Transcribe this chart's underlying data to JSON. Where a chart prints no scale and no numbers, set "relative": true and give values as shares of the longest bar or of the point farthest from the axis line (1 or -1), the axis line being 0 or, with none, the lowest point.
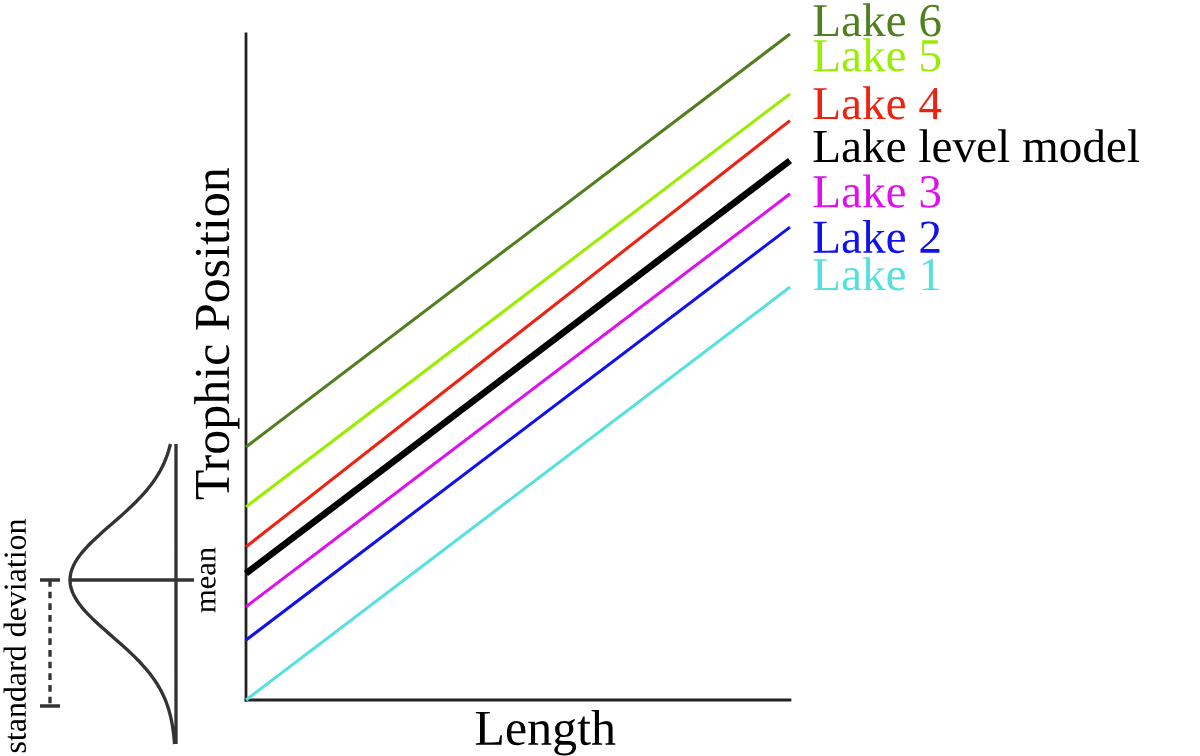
{
  "chart_data": {
    "type": "line",
    "relative": true,
    "xlabel": "Length",
    "ylabel": "Trophic Position",
    "categories": [
      null,
      null
    ],
    "series": [
      {
        "name": "Lake 6",
        "color": "#4f7f1f",
        "values": [
          0.38,
          1.0
        ]
      },
      {
        "name": "Lake 5",
        "color": "#99ee00",
        "values": [
          0.29,
          0.91
        ]
      },
      {
        "name": "Lake 4",
        "color": "#ee2211",
        "values": [
          0.23,
          0.87
        ]
      },
      {
        "name": "Lake level model",
        "color": "#000000",
        "values": [
          0.19,
          0.81
        ]
      },
      {
        "name": "Lake 3",
        "color": "#dd11ee",
        "values": [
          0.14,
          0.76
        ]
      },
      {
        "name": "Lake 2",
        "color": "#1111ee",
        "values": [
          0.09,
          0.71
        ]
      },
      {
        "name": "Lake 1",
        "color": "#55e0e0",
        "values": [
          0.0,
          0.62
        ]
      }
    ],
    "annotations": [
      "mean",
      "standard deviation"
    ]
  }
}
